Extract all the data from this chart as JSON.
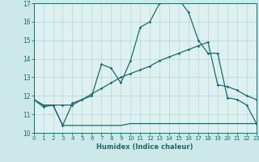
{
  "xlabel": "Humidex (Indice chaleur)",
  "xlim": [
    0,
    23
  ],
  "ylim": [
    10,
    17
  ],
  "yticks": [
    10,
    11,
    12,
    13,
    14,
    15,
    16,
    17
  ],
  "xticks": [
    0,
    1,
    2,
    3,
    4,
    5,
    6,
    7,
    8,
    9,
    10,
    11,
    12,
    13,
    14,
    15,
    16,
    17,
    18,
    19,
    20,
    21,
    22,
    23
  ],
  "bg_color": "#cce8e8",
  "plot_bg": "#dff0f0",
  "line_color": "#1a6b6b",
  "line1_x": [
    0,
    1,
    2,
    3,
    4,
    5,
    6,
    7,
    8,
    9,
    10,
    11,
    12,
    13,
    14,
    15,
    16,
    17,
    18,
    19,
    20,
    21,
    22,
    23
  ],
  "line1_y": [
    11.8,
    11.4,
    11.5,
    10.4,
    11.6,
    11.8,
    12.0,
    13.7,
    13.5,
    12.7,
    13.9,
    15.7,
    16.0,
    17.0,
    17.2,
    17.2,
    16.5,
    15.0,
    14.3,
    14.3,
    11.9,
    11.8,
    11.5,
    10.5
  ],
  "line2_x": [
    0,
    1,
    2,
    3,
    4,
    5,
    6,
    7,
    8,
    9,
    10,
    11,
    12,
    13,
    14,
    15,
    16,
    17,
    18,
    19,
    20,
    21,
    22,
    23
  ],
  "line2_y": [
    11.8,
    11.5,
    11.5,
    11.5,
    11.5,
    11.8,
    12.1,
    12.4,
    12.7,
    13.0,
    13.2,
    13.4,
    13.6,
    13.9,
    14.1,
    14.3,
    14.5,
    14.7,
    14.9,
    12.6,
    12.5,
    12.3,
    12.0,
    11.8
  ],
  "line3_x": [
    0,
    1,
    2,
    3,
    4,
    5,
    6,
    7,
    8,
    9,
    10,
    11,
    12,
    13,
    14,
    15,
    16,
    17,
    18,
    19,
    20,
    21,
    22,
    23
  ],
  "line3_y": [
    11.8,
    11.5,
    11.5,
    10.4,
    10.4,
    10.4,
    10.4,
    10.4,
    10.4,
    10.4,
    10.5,
    10.5,
    10.5,
    10.5,
    10.5,
    10.5,
    10.5,
    10.5,
    10.5,
    10.5,
    10.5,
    10.5,
    10.5,
    10.5
  ]
}
